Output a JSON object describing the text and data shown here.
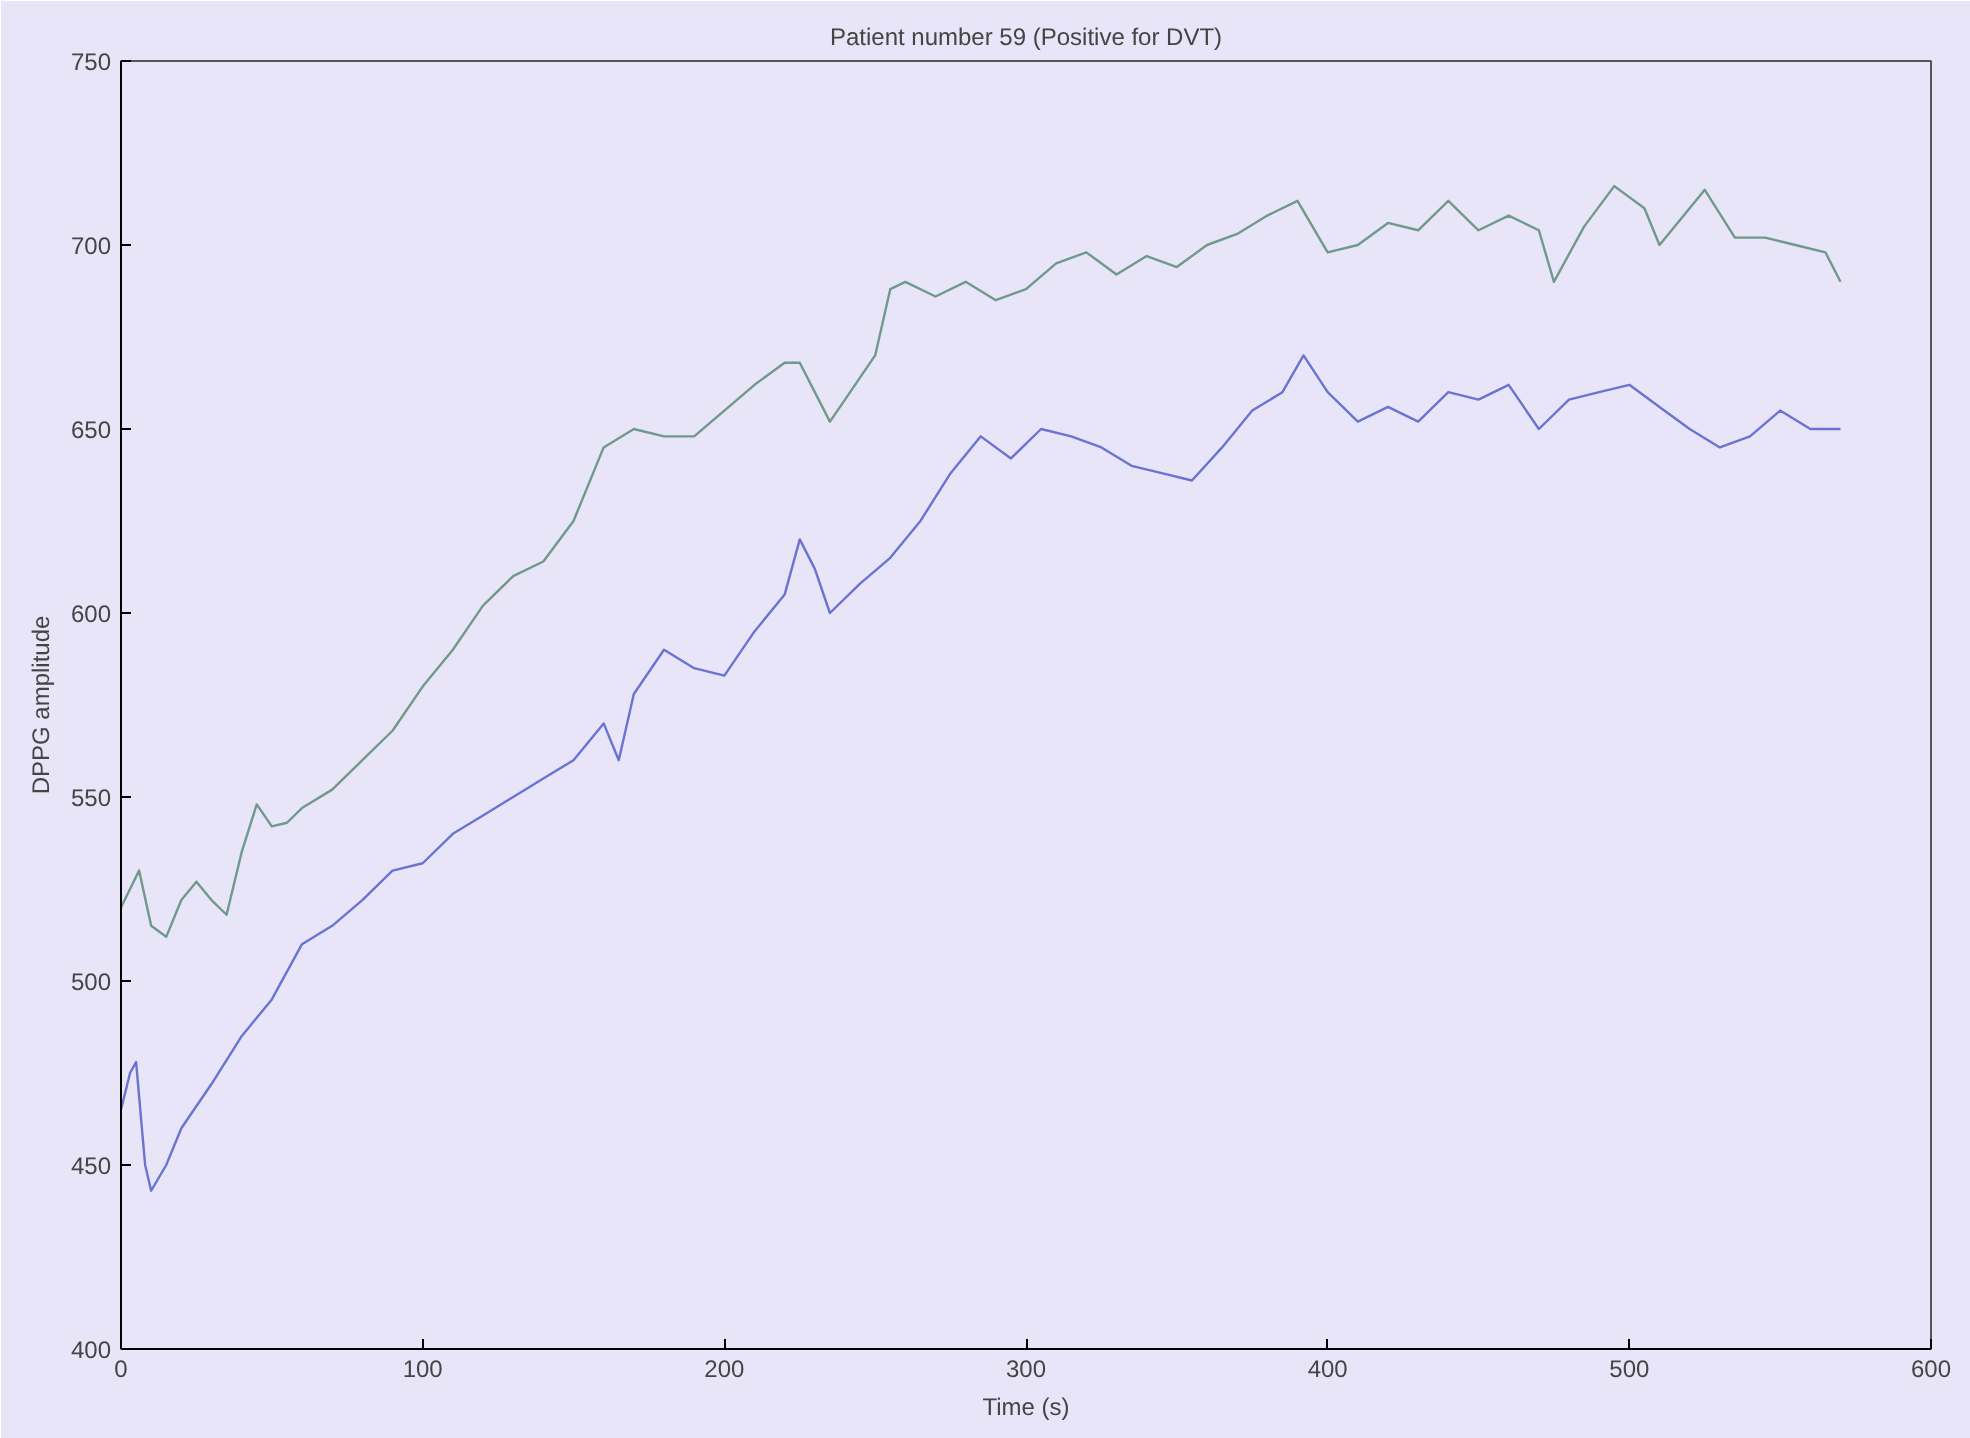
{
  "chart_data": {
    "type": "line",
    "title": "Patient number 59 (Positive for DVT)",
    "xlabel": "Time (s)",
    "ylabel": "DPPG amplitude",
    "xlim": [
      0,
      600
    ],
    "ylim": [
      400,
      750
    ],
    "xticks": [
      0,
      100,
      200,
      300,
      400,
      500,
      600
    ],
    "yticks": [
      400,
      450,
      500,
      550,
      600,
      650,
      700,
      750
    ],
    "grid": false,
    "series": [
      {
        "color": "#6f9a8a",
        "x": [
          0,
          3,
          6,
          10,
          15,
          20,
          25,
          30,
          35,
          40,
          45,
          50,
          55,
          60,
          70,
          80,
          90,
          100,
          110,
          120,
          130,
          140,
          150,
          160,
          170,
          180,
          190,
          200,
          210,
          220,
          225,
          235,
          240,
          250,
          255,
          260,
          270,
          280,
          290,
          300,
          310,
          320,
          330,
          340,
          350,
          360,
          370,
          380,
          390,
          400,
          410,
          420,
          430,
          440,
          450,
          460,
          470,
          475,
          485,
          495,
          505,
          510,
          520,
          525,
          535,
          545,
          555,
          565,
          570
        ],
        "values": [
          520,
          525,
          530,
          515,
          512,
          522,
          527,
          522,
          518,
          535,
          548,
          542,
          543,
          547,
          552,
          560,
          568,
          580,
          590,
          602,
          610,
          614,
          625,
          645,
          650,
          648,
          648,
          655,
          662,
          668,
          668,
          652,
          658,
          670,
          688,
          690,
          686,
          690,
          685,
          688,
          695,
          698,
          692,
          697,
          694,
          700,
          703,
          708,
          712,
          698,
          700,
          706,
          704,
          712,
          704,
          708,
          704,
          690,
          705,
          716,
          710,
          700,
          710,
          715,
          702,
          702,
          700,
          698,
          690
        ]
      },
      {
        "color": "#6a74d0",
        "x": [
          0,
          3,
          5,
          8,
          10,
          15,
          20,
          30,
          40,
          50,
          60,
          70,
          80,
          90,
          100,
          110,
          120,
          130,
          140,
          150,
          160,
          165,
          170,
          180,
          190,
          200,
          210,
          220,
          225,
          230,
          235,
          245,
          255,
          265,
          275,
          285,
          295,
          305,
          315,
          325,
          335,
          345,
          355,
          365,
          375,
          385,
          392,
          400,
          410,
          420,
          430,
          440,
          450,
          460,
          470,
          480,
          490,
          500,
          510,
          520,
          530,
          540,
          550,
          560,
          570
        ],
        "values": [
          465,
          475,
          478,
          450,
          443,
          450,
          460,
          472,
          485,
          495,
          510,
          515,
          522,
          530,
          532,
          540,
          545,
          550,
          555,
          560,
          570,
          560,
          578,
          590,
          585,
          583,
          595,
          605,
          620,
          612,
          600,
          608,
          615,
          625,
          638,
          648,
          642,
          650,
          648,
          645,
          640,
          638,
          636,
          645,
          655,
          660,
          670,
          660,
          652,
          656,
          652,
          660,
          658,
          662,
          650,
          658,
          660,
          662,
          656,
          650,
          645,
          648,
          655,
          650,
          650
        ]
      }
    ]
  }
}
